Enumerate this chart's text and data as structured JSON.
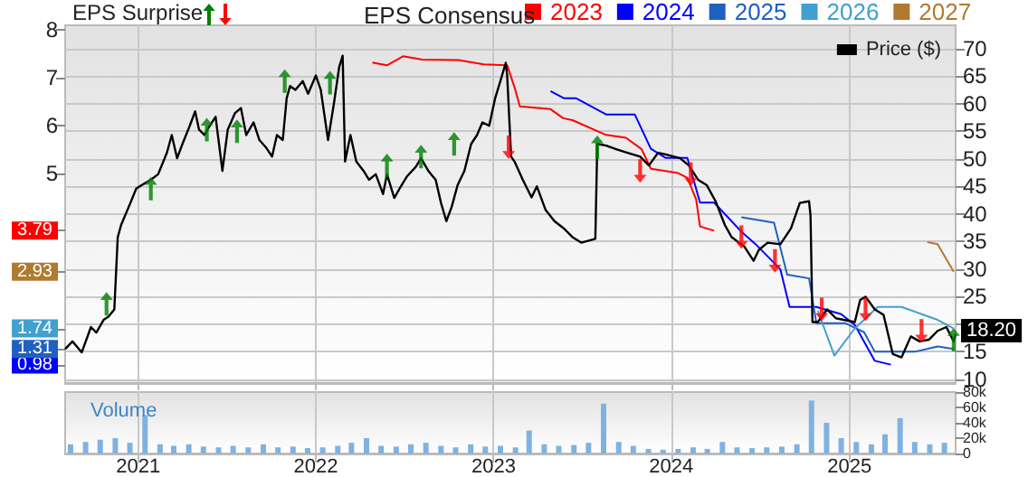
{
  "chart_data": [
    {
      "type": "line",
      "title": "EPS Surprise",
      "legend_title": "EPS Consensus",
      "legend": "top",
      "grid": true,
      "tick_labels": "y",
      "xlim": [
        "2020-08-04",
        "2025-08-07"
      ],
      "xticks": [
        "2021",
        "2022",
        "2023",
        "2024",
        "2025"
      ],
      "ylim": [
        0.6,
        8.1
      ],
      "yticks": [
        5,
        6,
        7,
        8,
        {
          "value": 3.79,
          "label": "3.79"
        },
        {
          "value": 2.93,
          "label": "2.93"
        },
        {
          "value": 0.98,
          "label": "0.98"
        },
        {
          "value": 1.74,
          "label": "1.74"
        },
        {
          "value": 1.31,
          "label": "1.31"
        }
      ],
      "y2lim": [
        9.4,
        74.2
      ],
      "y2ticks": [
        10,
        15,
        {
          "value": 20,
          "label": null
        },
        25,
        30,
        35,
        40,
        45,
        50,
        55,
        60,
        65,
        70
      ],
      "series": [
        {
          "name": "2023",
          "color": "#ff0000",
          "x": [
            "2022-04-27",
            "2022-05-27",
            "2022-06-29",
            "2022-08-08",
            "2022-10-22",
            "2022-12-12",
            "2023-01-29",
            "2023-02-13",
            "2023-02-24",
            "2023-04-28",
            "2023-05-24",
            "2023-06-12",
            "2023-08-20",
            "2023-09-30",
            "2023-11-01",
            "2023-11-20",
            "2024-01-15",
            "2024-02-03",
            "2024-02-21",
            "2024-02-29",
            "2024-03-29"
          ],
          "values": [
            7.32,
            7.26,
            7.45,
            7.38,
            7.37,
            7.28,
            7.26,
            6.8,
            6.4,
            6.34,
            6.15,
            6.11,
            5.8,
            5.74,
            5.5,
            5.09,
            5.0,
            4.9,
            4.45,
            3.88,
            3.79
          ]
        },
        {
          "name": "2024",
          "color": "#0000ff",
          "x": [
            "2023-04-28",
            "2023-05-25",
            "2023-06-19",
            "2023-08-20",
            "2023-10-18",
            "2023-11-20",
            "2023-12-20",
            "2024-02-03",
            "2024-02-29",
            "2024-03-29",
            "2024-05-24",
            "2024-06-22",
            "2024-08-12",
            "2024-08-31",
            "2024-10-25",
            "2024-12-15",
            "2025-01-12",
            "2025-02-22",
            "2025-03-27"
          ],
          "values": [
            6.72,
            6.57,
            6.57,
            6.23,
            6.23,
            5.51,
            5.32,
            5.32,
            4.38,
            4.38,
            3.77,
            3.51,
            2.98,
            2.19,
            2.19,
            2.04,
            1.81,
            1.06,
            0.98
          ]
        },
        {
          "name": "2025",
          "color": "#2060c0",
          "x": [
            "2024-05-24",
            "2024-07-30",
            "2024-08-26",
            "2024-10-10",
            "2024-10-25",
            "2024-12-23",
            "2025-01-31",
            "2025-02-22",
            "2025-05-15",
            "2025-07-01",
            "2025-08-03"
          ],
          "values": [
            4.07,
            3.96,
            2.87,
            2.79,
            1.85,
            1.85,
            1.66,
            1.25,
            1.25,
            1.36,
            1.31
          ]
        },
        {
          "name": "2026",
          "color": "#40a0d0",
          "x": [
            "2024-10-28",
            "2024-12-01",
            "2025-01-12",
            "2025-02-28",
            "2025-04-18",
            "2025-07-01",
            "2025-08-03"
          ],
          "values": [
            2.11,
            1.17,
            1.74,
            2.19,
            2.19,
            1.92,
            1.74
          ]
        },
        {
          "name": "2027",
          "color": "#b07a30",
          "x": [
            "2025-06-10",
            "2025-07-01",
            "2025-08-03"
          ],
          "values": [
            3.55,
            3.51,
            2.93
          ]
        },
        {
          "name": "Price ($)",
          "axis": "y2",
          "color": "#000000",
          "x": [
            "2020-08-04",
            "2020-08-19",
            "2020-09-07",
            "2020-09-26",
            "2020-10-07",
            "2020-10-22",
            "2020-11-01",
            "2020-11-13",
            "2020-11-20",
            "2020-11-27",
            "2020-12-16",
            "2020-12-28",
            "2021-01-08",
            "2021-01-27",
            "2021-02-11",
            "2021-03-01",
            "2021-03-11",
            "2021-03-22",
            "2021-04-02",
            "2021-04-17",
            "2021-04-28",
            "2021-05-06",
            "2021-05-17",
            "2021-05-28",
            "2021-06-09",
            "2021-06-23",
            "2021-07-04",
            "2021-07-19",
            "2021-07-31",
            "2021-08-11",
            "2021-08-26",
            "2021-09-07",
            "2021-09-21",
            "2021-10-03",
            "2021-10-13",
            "2021-10-25",
            "2021-11-02",
            "2021-11-09",
            "2021-11-20",
            "2021-12-05",
            "2021-12-16",
            "2022-01-01",
            "2022-01-11",
            "2022-01-26",
            "2022-02-07",
            "2022-02-18",
            "2022-02-25",
            "2022-03-02",
            "2022-03-13",
            "2022-03-25",
            "2022-04-09",
            "2022-04-20",
            "2022-05-04",
            "2022-05-19",
            "2022-05-27",
            "2022-06-11",
            "2022-06-22",
            "2022-07-07",
            "2022-07-25",
            "2022-08-05",
            "2022-08-20",
            "2022-09-04",
            "2022-09-15",
            "2022-09-26",
            "2022-10-07",
            "2022-10-19",
            "2022-11-02",
            "2022-11-16",
            "2022-11-28",
            "2022-12-09",
            "2022-12-23",
            "2023-01-04",
            "2023-01-15",
            "2023-01-26",
            "2023-01-29",
            "2023-02-06",
            "2023-02-13",
            "2023-03-02",
            "2023-03-20",
            "2023-03-31",
            "2023-04-18",
            "2023-05-06",
            "2023-05-25",
            "2023-06-12",
            "2023-06-30",
            "2023-07-29",
            "2023-08-02",
            "2023-08-20",
            "2023-09-11",
            "2023-10-03",
            "2023-10-29",
            "2023-11-16",
            "2023-12-05",
            "2023-12-20",
            "2024-01-19",
            "2024-02-06",
            "2024-02-25",
            "2024-03-14",
            "2024-04-01",
            "2024-04-20",
            "2024-05-04",
            "2024-05-30",
            "2024-06-18",
            "2024-06-29",
            "2024-07-17",
            "2024-08-12",
            "2024-09-03",
            "2024-09-21",
            "2024-10-10",
            "2024-10-13",
            "2024-10-17",
            "2024-10-28",
            "2024-11-16",
            "2024-12-04",
            "2025-01-12",
            "2025-01-23",
            "2025-02-03",
            "2025-02-22",
            "2025-03-12",
            "2025-03-31",
            "2025-04-18",
            "2025-05-07",
            "2025-05-25",
            "2025-06-13",
            "2025-07-01",
            "2025-07-19",
            "2025-08-03",
            "2025-08-07"
          ],
          "values": [
            15.5,
            16.9,
            14.9,
            19.5,
            18.5,
            20.8,
            21.4,
            22.7,
            35.8,
            38,
            42,
            44.6,
            45.2,
            46.2,
            47.2,
            51.1,
            54.3,
            50.1,
            52.7,
            56,
            58.6,
            55.3,
            54.3,
            56,
            57.6,
            47.8,
            55.3,
            58.3,
            59.2,
            54.3,
            56.6,
            53.4,
            52,
            50.4,
            54.3,
            53.4,
            61,
            63.2,
            62.5,
            64.1,
            61.8,
            65.1,
            62.5,
            53.4,
            60,
            66.7,
            68.7,
            49.5,
            54.3,
            49.5,
            47.8,
            46.2,
            47.2,
            43.6,
            47.2,
            42.9,
            44.6,
            46.8,
            48.5,
            50.1,
            47.8,
            46.2,
            42,
            38.7,
            41.3,
            45.2,
            47.8,
            52.7,
            54.3,
            56.6,
            56,
            60.9,
            64.1,
            67.4,
            65,
            50.4,
            49.5,
            46.2,
            43,
            45,
            40.7,
            38.7,
            37.4,
            35.8,
            34.8,
            35.5,
            52.7,
            52.4,
            51.7,
            51.1,
            50.4,
            48.8,
            51.1,
            50.8,
            50.1,
            48.8,
            46.2,
            45.2,
            42.3,
            38,
            35.8,
            34.1,
            31.5,
            33.5,
            34.8,
            34.5,
            37.4,
            42,
            42.3,
            39.7,
            20.4,
            20.4,
            22.7,
            21.1,
            20.4,
            24.4,
            25,
            22.7,
            21.7,
            14.6,
            14,
            17.8,
            16.9,
            17.2,
            18.8,
            19.5,
            16.9,
            18.2
          ],
          "value_labels": [
            null,
            null,
            null,
            null,
            null,
            null,
            null,
            null,
            null,
            null,
            null,
            null,
            null,
            null,
            null,
            null,
            null,
            null,
            null,
            null,
            null,
            null,
            null,
            null,
            null,
            null,
            null,
            null,
            null,
            null,
            null,
            null,
            null,
            null,
            null,
            null,
            null,
            null,
            null,
            null,
            null,
            null,
            null,
            null,
            null,
            null,
            null,
            null,
            null,
            null,
            null,
            null,
            null,
            null,
            null,
            null,
            null,
            null,
            null,
            null,
            null,
            null,
            null,
            null,
            null,
            null,
            null,
            null,
            null,
            null,
            null,
            null,
            null,
            null,
            null,
            null,
            null,
            null,
            null,
            null,
            null,
            null,
            null,
            null,
            null,
            null,
            null,
            null,
            null,
            null,
            null,
            null,
            null,
            null,
            null,
            null,
            null,
            null,
            null,
            null,
            null,
            null,
            null,
            null,
            null,
            null,
            null,
            null,
            null,
            null,
            null,
            null,
            null,
            null,
            null,
            null,
            null,
            null,
            null,
            null,
            null,
            null,
            null,
            null,
            null,
            null,
            null,
            "18.20"
          ]
        },
        {
          "type": "scatter",
          "axis": "y2",
          "color": "#008000",
          "x": [
            "2020-10-28",
            "2021-01-27",
            "2021-05-22",
            "2021-07-23",
            "2021-10-29",
            "2022-01-30",
            "2022-05-27",
            "2022-08-05",
            "2022-10-12",
            "2023-08-02",
            "2025-08-03"
          ],
          "values": [
            23.7,
            44.6,
            55.3,
            55,
            64.1,
            63.8,
            48.8,
            50.4,
            52.7,
            52.1,
            17.2
          ]
        },
        {
          "type": "scatter",
          "axis": "y2",
          "color": "#ff0000",
          "x": [
            "2023-02-01",
            "2023-10-29",
            "2024-02-10",
            "2024-05-24",
            "2024-08-01",
            "2024-11-05",
            "2025-02-03",
            "2025-05-29"
          ],
          "values": [
            52.1,
            47.8,
            47.2,
            35.8,
            31.5,
            22.7,
            22.7,
            18.8
          ]
        }
      ]
    },
    {
      "type": "bar",
      "grid": "x",
      "annotations": [
        "Volume"
      ],
      "xlim": [
        "2020-08-04",
        "2025-08-07"
      ],
      "xticks": [
        "2021",
        "2022",
        "2023",
        "2024",
        "2025"
      ],
      "y2lim": [
        0,
        80000
      ],
      "y2ticks": [
        0,
        {
          "value": 20000,
          "label": "20k"
        },
        {
          "value": 40000,
          "label": "40k"
        },
        {
          "value": 60000,
          "label": "60k"
        },
        {
          "value": 80000,
          "label": "80k"
        }
      ],
      "series": [
        {
          "axis": "y2",
          "color": "#7fb2e0",
          "x": [
            "2020-08-15",
            "2020-09-15",
            "2020-10-15",
            "2020-11-15",
            "2020-12-15",
            "2021-01-15",
            "2021-02-15",
            "2021-03-15",
            "2021-04-15",
            "2021-05-15",
            "2021-06-15",
            "2021-07-15",
            "2021-08-15",
            "2021-09-15",
            "2021-10-15",
            "2021-11-15",
            "2021-12-15",
            "2022-01-15",
            "2022-02-15",
            "2022-03-15",
            "2022-04-15",
            "2022-05-15",
            "2022-06-15",
            "2022-07-15",
            "2022-08-15",
            "2022-09-15",
            "2022-10-15",
            "2022-11-15",
            "2022-12-15",
            "2023-01-15",
            "2023-02-15",
            "2023-03-15",
            "2023-04-15",
            "2023-05-15",
            "2023-06-15",
            "2023-07-15",
            "2023-08-15",
            "2023-09-15",
            "2023-10-15",
            "2023-11-15",
            "2023-12-15",
            "2024-01-15",
            "2024-02-15",
            "2024-03-15",
            "2024-04-15",
            "2024-05-15",
            "2024-06-15",
            "2024-07-15",
            "2024-08-15",
            "2024-09-15",
            "2024-10-15",
            "2024-11-15",
            "2024-12-15",
            "2025-01-15",
            "2025-02-15",
            "2025-03-15",
            "2025-04-15",
            "2025-05-15",
            "2025-06-15",
            "2025-07-15"
          ],
          "values": [
            12000,
            15000,
            18000,
            20000,
            14000,
            50000,
            12000,
            10000,
            12000,
            9000,
            8000,
            10000,
            8000,
            12000,
            8000,
            9000,
            7000,
            8000,
            10000,
            14000,
            20000,
            10000,
            9000,
            12000,
            14000,
            10000,
            8000,
            12000,
            9000,
            10000,
            8000,
            30000,
            12000,
            10000,
            11000,
            14000,
            65000,
            15000,
            10000,
            6000,
            5000,
            6000,
            8000,
            6000,
            15000,
            8000,
            7000,
            8000,
            9000,
            12000,
            69000,
            40000,
            20000,
            15000,
            12000,
            25000,
            46000,
            15000,
            12000,
            14000
          ]
        }
      ]
    }
  ]
}
